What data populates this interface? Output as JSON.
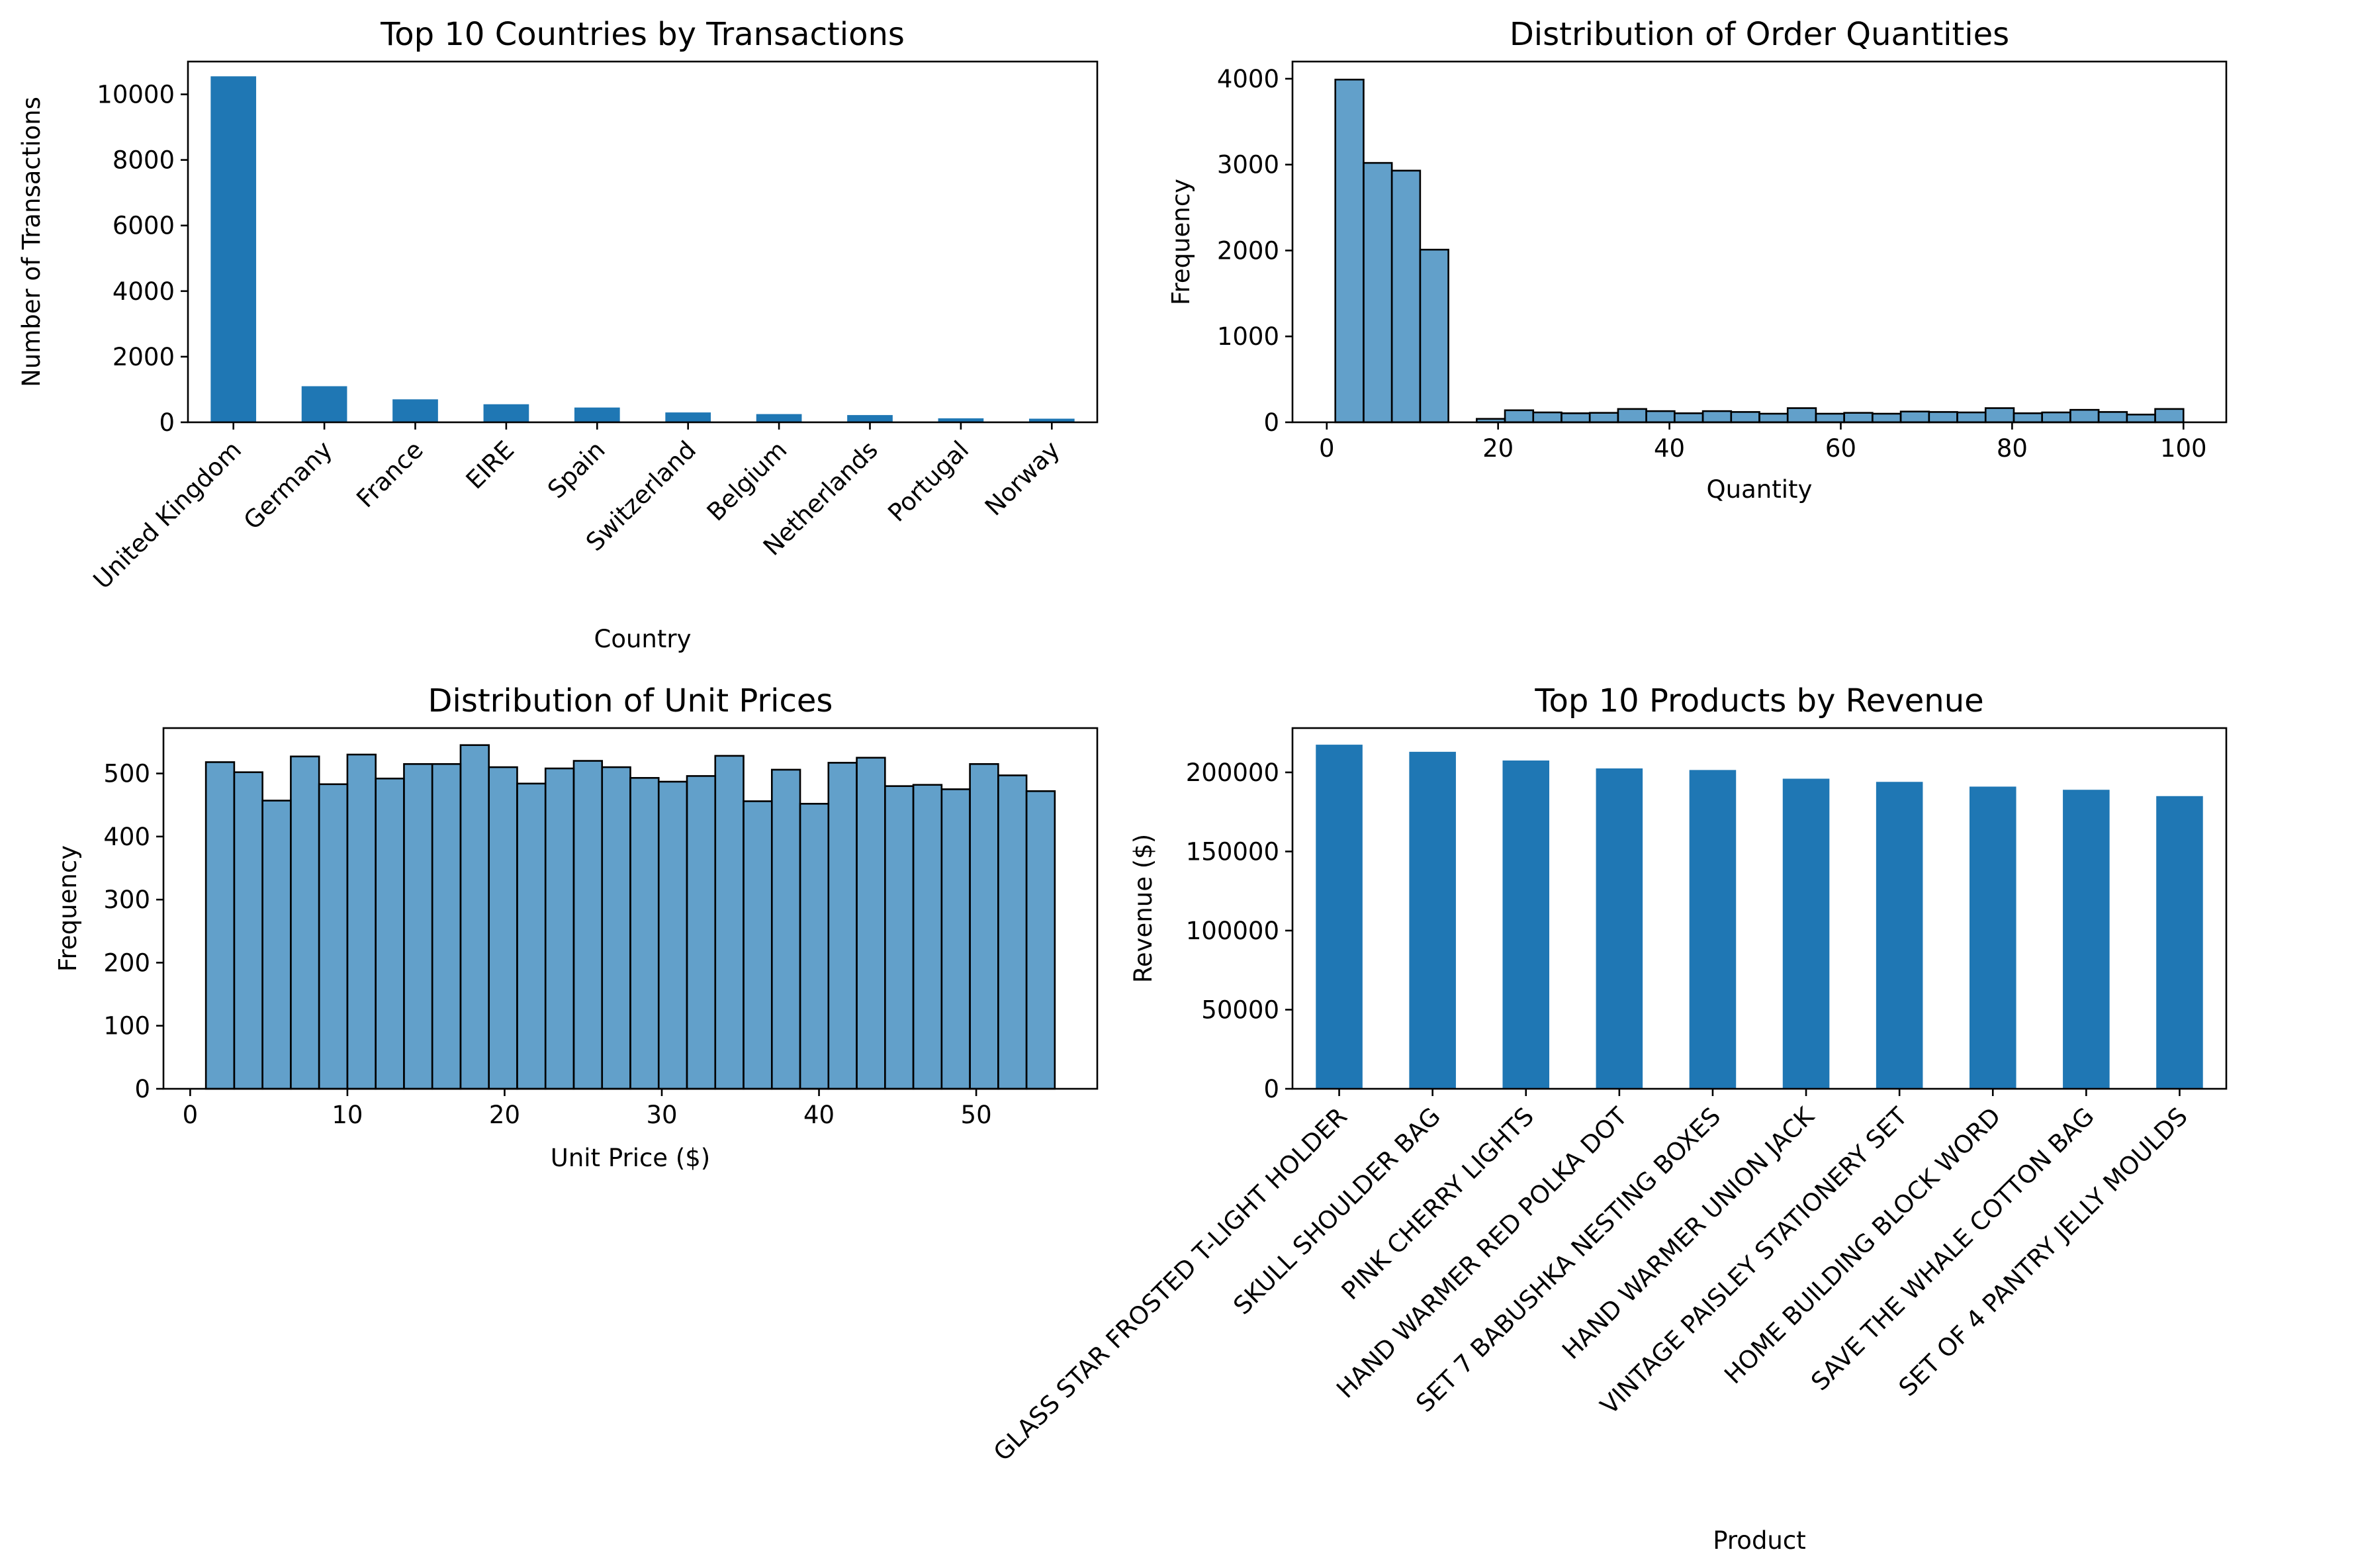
{
  "colors": {
    "bar": "#1f77b4",
    "hist_fill": "#1f77b4",
    "hist_alpha": 0.7,
    "edge": "#000000"
  },
  "chart_data": [
    {
      "type": "bar",
      "title": "Top 10 Countries by Transactions",
      "xlabel": "Country",
      "ylabel": "Number of Transactions",
      "categories": [
        "United Kingdom",
        "Germany",
        "France",
        "EIRE",
        "Spain",
        "Switzerland",
        "Belgium",
        "Netherlands",
        "Portugal",
        "Norway"
      ],
      "values": [
        10550,
        1100,
        700,
        550,
        450,
        300,
        250,
        220,
        120,
        110
      ],
      "ylim": [
        0,
        11000
      ],
      "yticks": [
        0,
        2000,
        4000,
        6000,
        8000,
        10000
      ],
      "xtick_rotation": 45
    },
    {
      "type": "bar",
      "subtype": "histogram",
      "title": "Distribution of Order Quantities",
      "xlabel": "Quantity",
      "ylabel": "Frequency",
      "bin_edges": [
        1,
        4.3,
        7.6,
        10.9,
        14.2,
        17.5,
        20.8,
        24.1,
        27.4,
        30.7,
        34,
        37.3,
        40.6,
        43.9,
        47.2,
        50.5,
        53.8,
        57.1,
        60.4,
        63.7,
        67,
        70.3,
        73.6,
        76.9,
        80.2,
        83.5,
        86.8,
        90.1,
        93.4,
        96.7,
        100
      ],
      "values": [
        3990,
        3020,
        2930,
        2010,
        0,
        40,
        140,
        115,
        105,
        110,
        155,
        130,
        105,
        130,
        120,
        100,
        165,
        100,
        110,
        100,
        125,
        120,
        115,
        165,
        105,
        115,
        145,
        120,
        90,
        155
      ],
      "xlim": [
        -4,
        105
      ],
      "ylim": [
        0,
        4200
      ],
      "xticks": [
        0,
        20,
        40,
        60,
        80,
        100
      ],
      "yticks": [
        0,
        1000,
        2000,
        3000,
        4000
      ]
    },
    {
      "type": "bar",
      "subtype": "histogram",
      "title": "Distribution of Unit Prices",
      "xlabel": "Unit Price ($)",
      "ylabel": "Frequency",
      "bin_edges": [
        1,
        2.8,
        4.6,
        6.4,
        8.2,
        10,
        11.8,
        13.6,
        15.4,
        17.2,
        19,
        20.8,
        22.6,
        24.4,
        26.2,
        28,
        29.8,
        31.6,
        33.4,
        35.2,
        37,
        38.8,
        40.6,
        42.4,
        44.2,
        46,
        47.8,
        49.6,
        51.4,
        53.2,
        55
      ],
      "values": [
        518,
        502,
        457,
        527,
        483,
        530,
        492,
        515,
        515,
        545,
        510,
        484,
        508,
        520,
        510,
        493,
        487,
        496,
        528,
        456,
        506,
        452,
        517,
        525,
        480,
        482,
        475,
        515,
        497,
        472
      ],
      "xlim": [
        -1.7,
        57.7
      ],
      "ylim": [
        0,
        572
      ],
      "xticks": [
        0,
        10,
        20,
        30,
        40,
        50
      ],
      "yticks": [
        0,
        100,
        200,
        300,
        400,
        500
      ]
    },
    {
      "type": "bar",
      "title": "Top 10 Products by Revenue",
      "xlabel": "Product",
      "ylabel": "Revenue ($)",
      "categories": [
        "GLASS STAR FROSTED T-LIGHT HOLDER",
        "SKULL SHOULDER BAG",
        "PINK CHERRY LIGHTS",
        "HAND WARMER RED POLKA DOT",
        "SET 7 BABUSHKA NESTING BOXES",
        "HAND WARMER UNION JACK",
        "VINTAGE PAISLEY STATIONERY SET",
        "HOME BUILDING BLOCK WORD",
        "SAVE THE WHALE COTTON BAG",
        "SET OF 4 PANTRY JELLY MOULDS"
      ],
      "values": [
        217500,
        213000,
        207500,
        202500,
        201500,
        196000,
        194000,
        191000,
        189000,
        185000
      ],
      "ylim": [
        0,
        228000
      ],
      "yticks": [
        0,
        50000,
        100000,
        150000,
        200000
      ],
      "xtick_rotation": 45
    }
  ]
}
